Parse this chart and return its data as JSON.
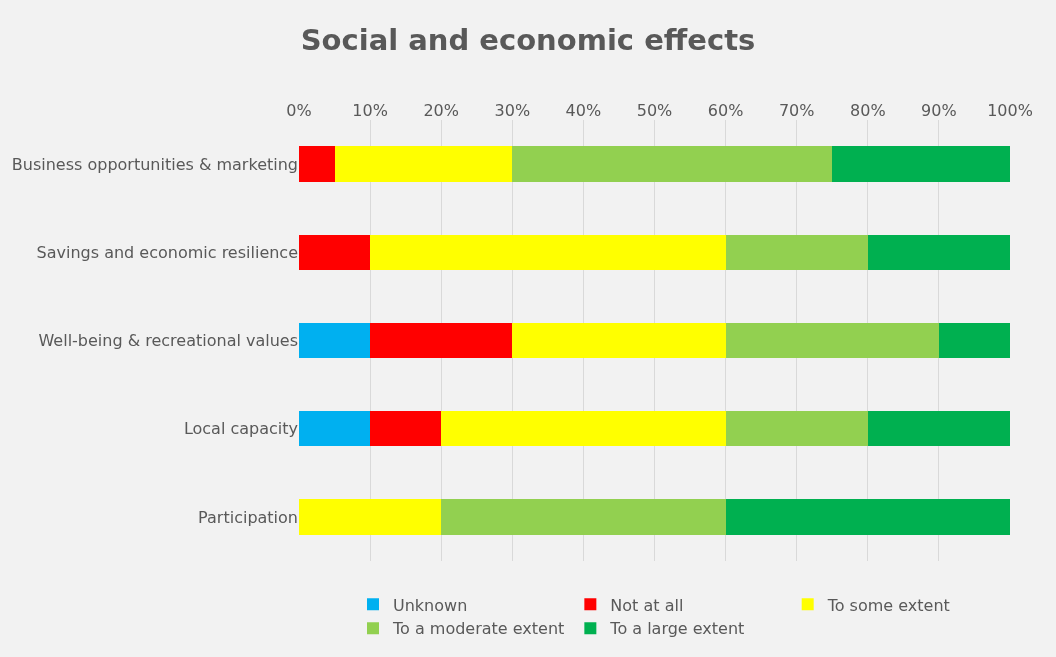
{
  "chart_data": {
    "type": "bar",
    "orientation": "horizontal",
    "stacked": true,
    "title": "Social and economic effects",
    "categories": [
      "Business opportunities & marketing",
      "Savings and economic resilience",
      "Well-being & recreational values",
      "Local capacity",
      "Participation"
    ],
    "series": [
      {
        "name": "Unknown",
        "color": "#00b0f0",
        "values": [
          0,
          0,
          10,
          10,
          0
        ]
      },
      {
        "name": "Not at all",
        "color": "#ff0000",
        "values": [
          5,
          10,
          20,
          10,
          0
        ]
      },
      {
        "name": "To some extent",
        "color": "#ffff00",
        "values": [
          25,
          50,
          30,
          40,
          20
        ]
      },
      {
        "name": "To a moderate extent",
        "color": "#92d050",
        "values": [
          45,
          20,
          30,
          20,
          40
        ]
      },
      {
        "name": "To a large extent",
        "color": "#00b050",
        "values": [
          25,
          20,
          10,
          20,
          40
        ]
      }
    ],
    "xlim": [
      0,
      100
    ],
    "xticks": [
      {
        "value": 0,
        "label": "0%"
      },
      {
        "value": 10,
        "label": "10%"
      },
      {
        "value": 20,
        "label": "20%"
      },
      {
        "value": 30,
        "label": "30%"
      },
      {
        "value": 40,
        "label": "40%"
      },
      {
        "value": 50,
        "label": "50%"
      },
      {
        "value": 60,
        "label": "60%"
      },
      {
        "value": 70,
        "label": "70%"
      },
      {
        "value": 80,
        "label": "80%"
      },
      {
        "value": 90,
        "label": "90%"
      },
      {
        "value": 100,
        "label": "100%"
      }
    ],
    "grid": "x",
    "legend": "bottom"
  }
}
